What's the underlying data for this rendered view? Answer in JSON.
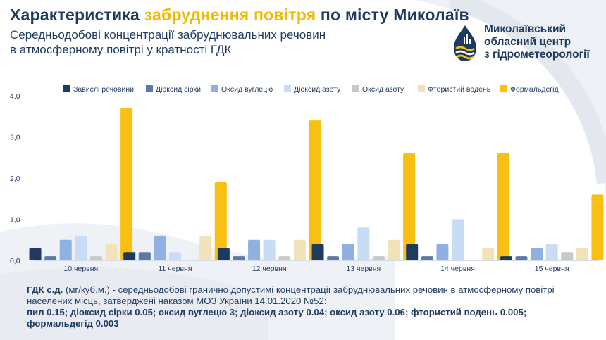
{
  "header": {
    "title_part1": "Характеристика ",
    "title_highlight": "забруднення повітря",
    "title_part2": " по місту Миколаїв",
    "subtitle_line1": "Середньодобові концентрації забруднювальних речовин",
    "subtitle_line2": "в атмосферному повітрі у кратності ГДК"
  },
  "logo": {
    "line1": "Миколаївський",
    "line2": "обласний центр",
    "line3": "з гідрометеорології",
    "icon": "drop-waves-logo-icon"
  },
  "footnote": {
    "term": "ГДК с.д.",
    "text": " (мг/куб.м.) - середньодобові гранично допустимі концентрації забруднювальних речовин в атмосферному повітрі населених місць, затверджені наказом МОЗ України 14.01.2020 №52:",
    "limits": "пил 0.15; діоксид сірки 0.05; оксид вуглецю 3; діоксид азоту 0.04; оксид азоту 0.06; фтористий водень 0.005; формальдегід 0.003"
  },
  "chart_data": {
    "type": "bar",
    "categories": [
      "10 червня",
      "11 червня",
      "12 червня",
      "13 червня",
      "14 червня",
      "15 червня"
    ],
    "series": [
      {
        "name": "Завислі речовини",
        "color": "#1f3a5f",
        "values": [
          0.3,
          0.2,
          0.3,
          0.4,
          0.4,
          0.1
        ]
      },
      {
        "name": "Діоксид сірки",
        "color": "#5d7aa6",
        "values": [
          0.1,
          0.2,
          0.1,
          0.1,
          0.1,
          0.1
        ]
      },
      {
        "name": "Оксид вуглецю",
        "color": "#8fb1e0",
        "values": [
          0.5,
          0.6,
          0.5,
          0.4,
          0.4,
          0.3
        ]
      },
      {
        "name": "Діоксид азоту",
        "color": "#c8dcf5",
        "values": [
          0.6,
          0.2,
          0.5,
          0.8,
          1.0,
          0.4
        ]
      },
      {
        "name": "Оксид азоту",
        "color": "#c9c9c9",
        "values": [
          0.1,
          0.0,
          0.1,
          0.1,
          0.0,
          0.2
        ]
      },
      {
        "name": "Фтористий водень",
        "color": "#f1e2ba",
        "values": [
          0.4,
          0.6,
          0.5,
          0.5,
          0.3,
          0.3
        ]
      },
      {
        "name": "Формальдегід",
        "color": "#f9c013",
        "values": [
          3.7,
          1.9,
          3.4,
          2.6,
          2.6,
          1.6
        ]
      }
    ],
    "yticks": [
      "0,0",
      "1,0",
      "2,0",
      "3,0",
      "4,0"
    ],
    "ylim": [
      0,
      4
    ],
    "grid": false,
    "legend": "top"
  }
}
